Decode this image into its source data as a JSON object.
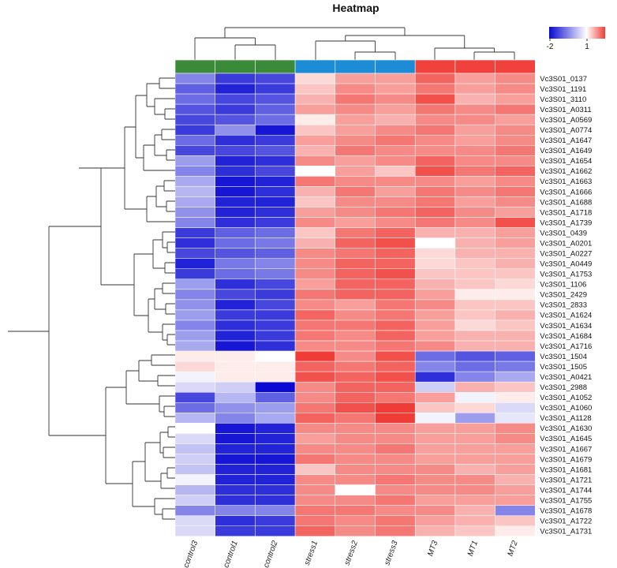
{
  "chart_data": {
    "type": "heatmap",
    "title": "Heatmap",
    "columns": [
      "control3",
      "control1",
      "control2",
      "stress1",
      "stress2",
      "stress3",
      "MT3",
      "MT1",
      "MT2"
    ],
    "column_groups": [
      {
        "name": "control",
        "color": "#3a8a3a",
        "columns": [
          "control3",
          "control1",
          "control2"
        ]
      },
      {
        "name": "stress",
        "color": "#1c8cd6",
        "columns": [
          "stress1",
          "stress2",
          "stress3"
        ]
      },
      {
        "name": "MT",
        "color": "#f0413c",
        "columns": [
          "MT3",
          "MT1",
          "MT2"
        ]
      }
    ],
    "rows": [
      "Vc3S01_0137",
      "Vc3S01_1191",
      "Vc3S01_3110",
      "Vc3S01_A0311",
      "Vc3S01_A0569",
      "Vc3S01_A0774",
      "Vc3S01_A1647",
      "Vc3S01_A1649",
      "Vc3S01_A1654",
      "Vc3S01_A1662",
      "Vc3S01_A1663",
      "Vc3S01_A1666",
      "Vc3S01_A1688",
      "Vc3S01_A1718",
      "Vc3S01_A1739",
      "Vc3S01_0439",
      "Vc3S01_A0201",
      "Vc3S01_A0227",
      "Vc3S01_A0449",
      "Vc3S01_A1753",
      "Vc3S01_1106",
      "Vc3S01_2429",
      "Vc3S01_2833",
      "Vc3S01_A1624",
      "Vc3S01_A1634",
      "Vc3S01_A1684",
      "Vc3S01_A1716",
      "Vc3S01_1504",
      "Vc3S01_1505",
      "Vc3S01_A0421",
      "Vc3S01_2988",
      "Vc3S01_A1052",
      "Vc3S01_A1060",
      "Vc3S01_A1128",
      "Vc3S01_A1630",
      "Vc3S01_A1645",
      "Vc3S01_A1667",
      "Vc3S01_A1679",
      "Vc3S01_A1681",
      "Vc3S01_A1721",
      "Vc3S01_A1744",
      "Vc3S01_A1755",
      "Vc3S01_A1678",
      "Vc3S01_A1722",
      "Vc3S01_A1731"
    ],
    "values": [
      [
        -1.0,
        -1.6,
        -1.5,
        0.2,
        0.5,
        0.5,
        0.8,
        0.5,
        0.6
      ],
      [
        -1.3,
        -1.8,
        -1.6,
        0.3,
        0.6,
        0.5,
        0.7,
        0.5,
        0.6
      ],
      [
        -1.2,
        -1.5,
        -1.4,
        0.4,
        0.7,
        0.6,
        0.9,
        0.4,
        0.5
      ],
      [
        -1.4,
        -1.6,
        -1.3,
        0.5,
        0.6,
        0.5,
        0.7,
        0.6,
        0.7
      ],
      [
        -1.5,
        -1.4,
        -1.2,
        0.1,
        0.5,
        0.4,
        0.6,
        0.6,
        0.5
      ],
      [
        -1.6,
        -0.9,
        -1.9,
        0.3,
        0.5,
        0.6,
        0.7,
        0.5,
        0.6
      ],
      [
        -1.2,
        -1.7,
        -1.6,
        0.5,
        0.6,
        0.7,
        0.6,
        0.5,
        0.6
      ],
      [
        -1.5,
        -1.5,
        -1.4,
        0.4,
        0.7,
        0.6,
        0.6,
        0.6,
        0.7
      ],
      [
        -0.8,
        -1.8,
        -1.7,
        0.6,
        0.5,
        0.6,
        0.8,
        0.6,
        0.6
      ],
      [
        -1.0,
        -1.7,
        -1.5,
        0.0,
        0.5,
        0.3,
        0.9,
        0.7,
        0.8
      ],
      [
        -0.7,
        -1.9,
        -1.8,
        0.7,
        0.6,
        0.6,
        0.6,
        0.5,
        0.6
      ],
      [
        -0.6,
        -1.9,
        -1.7,
        0.4,
        0.7,
        0.5,
        0.7,
        0.6,
        0.7
      ],
      [
        -0.7,
        -1.8,
        -1.8,
        0.3,
        0.6,
        0.6,
        0.7,
        0.5,
        0.6
      ],
      [
        -0.9,
        -1.8,
        -1.7,
        0.5,
        0.6,
        0.7,
        0.8,
        0.6,
        0.5
      ],
      [
        -1.0,
        -1.7,
        -1.6,
        0.6,
        0.5,
        0.6,
        0.7,
        0.6,
        0.9
      ],
      [
        -1.6,
        -1.3,
        -1.2,
        0.3,
        0.7,
        0.8,
        0.4,
        0.4,
        0.5
      ],
      [
        -1.7,
        -1.2,
        -1.1,
        0.4,
        0.8,
        0.9,
        0.0,
        0.4,
        0.5
      ],
      [
        -1.5,
        -1.4,
        -1.3,
        0.6,
        0.7,
        0.8,
        0.2,
        0.4,
        0.4
      ],
      [
        -1.8,
        -1.1,
        -1.0,
        0.6,
        0.8,
        0.8,
        0.2,
        0.3,
        0.4
      ],
      [
        -1.6,
        -1.2,
        -1.1,
        0.6,
        0.8,
        0.9,
        0.3,
        0.3,
        0.3
      ],
      [
        -0.8,
        -1.7,
        -1.5,
        0.5,
        0.8,
        0.8,
        0.4,
        0.3,
        0.2
      ],
      [
        -1.0,
        -1.5,
        -1.6,
        0.7,
        0.8,
        0.8,
        0.5,
        0.1,
        0.1
      ],
      [
        -0.9,
        -1.8,
        -1.5,
        0.6,
        0.5,
        0.7,
        0.6,
        0.3,
        0.3
      ],
      [
        -0.8,
        -1.6,
        -1.6,
        0.8,
        0.6,
        0.7,
        0.5,
        0.3,
        0.4
      ],
      [
        -1.0,
        -1.7,
        -1.6,
        0.7,
        0.7,
        0.8,
        0.5,
        0.2,
        0.3
      ],
      [
        -0.8,
        -1.8,
        -1.6,
        0.7,
        0.6,
        0.8,
        0.5,
        0.4,
        0.4
      ],
      [
        -0.7,
        -1.9,
        -1.7,
        0.6,
        0.6,
        0.7,
        0.6,
        0.4,
        0.4
      ],
      [
        0.1,
        0.1,
        0.0,
        1.0,
        0.6,
        0.9,
        -1.2,
        -1.4,
        -1.3
      ],
      [
        0.2,
        0.1,
        0.1,
        0.8,
        0.7,
        0.8,
        -1.0,
        -1.2,
        -1.1
      ],
      [
        -0.1,
        0.1,
        0.1,
        0.9,
        0.8,
        0.9,
        -1.7,
        -1.0,
        -0.7
      ],
      [
        -0.3,
        -0.4,
        -2.1,
        0.6,
        0.8,
        0.8,
        -0.4,
        0.4,
        0.3
      ],
      [
        -1.5,
        -0.6,
        -1.3,
        0.6,
        0.8,
        0.7,
        0.5,
        -0.1,
        0.1
      ],
      [
        -1.2,
        -0.9,
        -0.8,
        0.7,
        0.9,
        1.0,
        0.3,
        0.2,
        -0.3
      ],
      [
        -0.6,
        -1.0,
        -0.7,
        0.8,
        0.7,
        1.1,
        -0.1,
        -0.8,
        -0.2
      ],
      [
        0.0,
        -1.9,
        -1.8,
        0.6,
        0.6,
        0.6,
        0.5,
        0.5,
        0.6
      ],
      [
        -0.3,
        -1.9,
        -1.8,
        0.5,
        0.6,
        0.6,
        0.5,
        0.5,
        0.6
      ],
      [
        -0.5,
        -1.8,
        -1.8,
        0.6,
        0.6,
        0.7,
        0.5,
        0.5,
        0.5
      ],
      [
        -0.4,
        -1.9,
        -1.9,
        0.7,
        0.6,
        0.6,
        0.5,
        0.5,
        0.5
      ],
      [
        -0.5,
        -1.8,
        -1.8,
        0.3,
        0.6,
        0.6,
        0.6,
        0.4,
        0.5
      ],
      [
        -0.1,
        -1.8,
        -1.8,
        0.6,
        0.6,
        0.7,
        0.6,
        0.6,
        0.4
      ],
      [
        -0.6,
        -1.7,
        -1.7,
        0.6,
        0.0,
        0.6,
        0.6,
        0.6,
        0.5
      ],
      [
        -0.4,
        -1.7,
        -1.7,
        0.6,
        0.6,
        0.7,
        0.5,
        0.5,
        0.5
      ],
      [
        -1.0,
        -1.0,
        -1.0,
        0.7,
        0.7,
        0.6,
        0.6,
        0.4,
        -1.0
      ],
      [
        -0.3,
        -1.7,
        -1.6,
        0.7,
        0.6,
        0.7,
        0.5,
        0.4,
        0.3
      ],
      [
        -0.3,
        -1.6,
        -1.6,
        0.8,
        0.6,
        0.7,
        0.4,
        0.3,
        0.1
      ]
    ],
    "color_scale": {
      "min": -2,
      "max": 1,
      "low_color": "#0a0ad2",
      "mid_color": "#ffffff",
      "high_color": "#f03c37"
    },
    "legend": {
      "ticks": [
        "-2",
        "1"
      ],
      "placement": "top-right"
    },
    "row_dendrogram": true,
    "column_dendrogram": true,
    "xlabel": "",
    "ylabel": ""
  }
}
